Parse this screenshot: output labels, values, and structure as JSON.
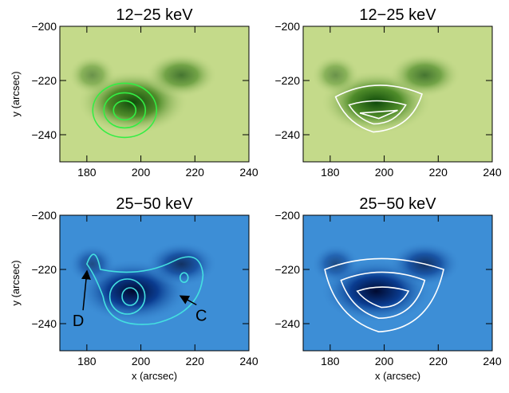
{
  "chart_data": [
    {
      "type": "image",
      "title": "12−25 keV",
      "colormap": "green",
      "contour_color": "#33ee44",
      "xlim": [
        170,
        240
      ],
      "ylim": [
        -250,
        -200
      ],
      "xticks": [
        180,
        200,
        220,
        240
      ],
      "yticks": [
        {
          "value": -200,
          "label": "−200"
        },
        {
          "value": -220,
          "label": "−220"
        },
        {
          "value": -240,
          "label": "−240"
        }
      ],
      "ylabel": "y (arcsec)"
    },
    {
      "type": "image",
      "title": "12−25 keV",
      "colormap": "green",
      "contour_color": "#ffffff",
      "xlim": [
        170,
        240
      ],
      "ylim": [
        -250,
        -200
      ],
      "xticks": [
        180,
        200,
        220,
        240
      ],
      "yticks": [
        {
          "value": -200,
          "label": "−200"
        },
        {
          "value": -220,
          "label": "−220"
        },
        {
          "value": -240,
          "label": "−240"
        }
      ]
    },
    {
      "type": "image",
      "title": "25−50 keV",
      "colormap": "blue",
      "contour_color": "#44e0e0",
      "xlim": [
        170,
        240
      ],
      "ylim": [
        -250,
        -200
      ],
      "xticks": [
        180,
        200,
        220,
        240
      ],
      "yticks": [
        {
          "value": -200,
          "label": "−200"
        },
        {
          "value": -220,
          "label": "−220"
        },
        {
          "value": -240,
          "label": "−240"
        }
      ],
      "xlabel": "x (arcsec)",
      "ylabel": "y (arcsec)",
      "annotations": [
        "D",
        "C"
      ]
    },
    {
      "type": "image",
      "title": "25−50 keV",
      "colormap": "blue",
      "contour_color": "#ffffff",
      "xlim": [
        170,
        240
      ],
      "ylim": [
        -250,
        -200
      ],
      "xticks": [
        180,
        200,
        220,
        240
      ],
      "yticks": [
        {
          "value": -200,
          "label": "−200"
        },
        {
          "value": -220,
          "label": "−220"
        },
        {
          "value": -240,
          "label": "−240"
        }
      ],
      "xlabel": "x (arcsec)"
    }
  ]
}
